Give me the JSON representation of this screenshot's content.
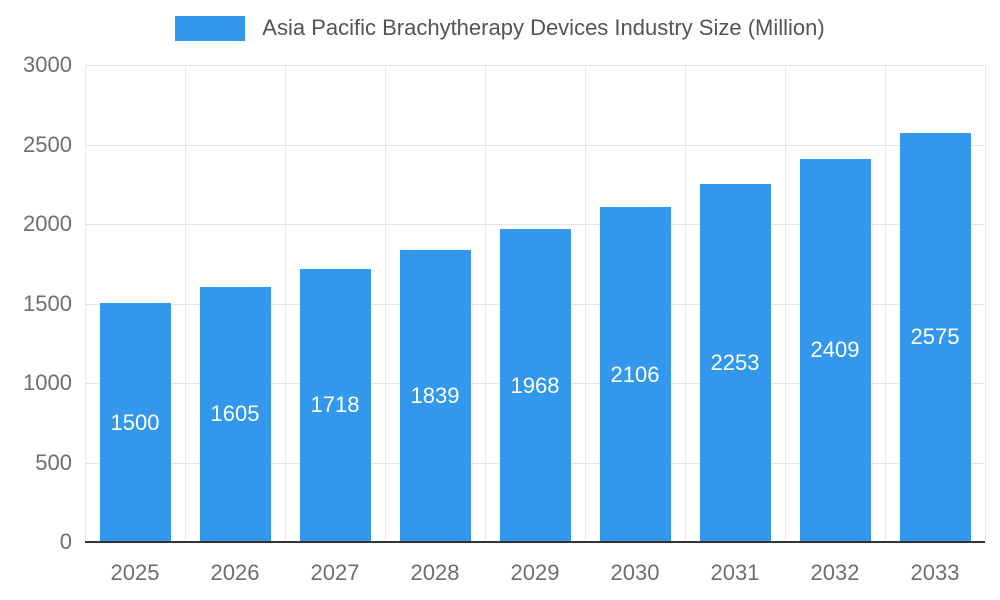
{
  "chart_data": {
    "type": "bar",
    "title": "Asia Pacific Brachytherapy Devices Industry Size (Million)",
    "categories": [
      "2025",
      "2026",
      "2027",
      "2028",
      "2029",
      "2030",
      "2031",
      "2032",
      "2033"
    ],
    "values": [
      1500,
      1605,
      1718,
      1839,
      1968,
      2106,
      2253,
      2409,
      2575
    ],
    "xlabel": "",
    "ylabel": "",
    "ylim": [
      0,
      3000
    ],
    "yticks": [
      0,
      500,
      1000,
      1500,
      2000,
      2500,
      3000
    ],
    "grid": true,
    "legend_position": "top",
    "bar_label_position": "inside-center"
  },
  "colors": {
    "bar": "#3398EC",
    "bar_label": "#ffffff",
    "gridline": "#e4e4e4",
    "vgridline": "#e9e9e9",
    "baseline": "#333333",
    "tick_text": "#6e6e6e",
    "title_text": "#545454",
    "background": "#ffffff"
  }
}
